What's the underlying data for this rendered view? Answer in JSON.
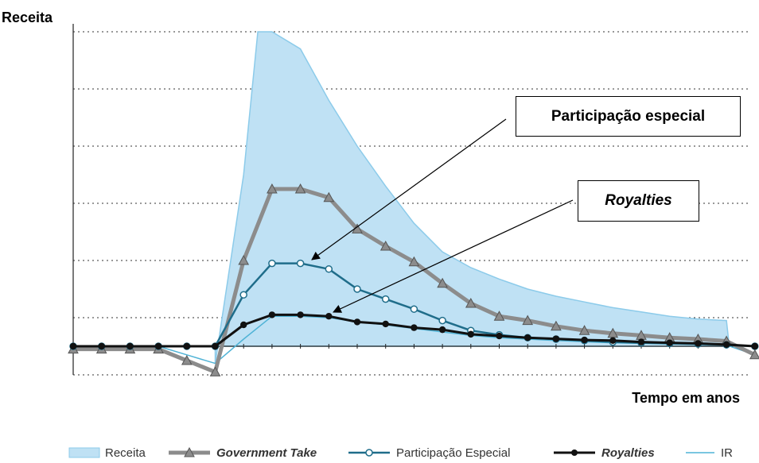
{
  "chart_data": {
    "type": "line",
    "ylabel": "Receita",
    "xlabel": "Tempo em anos",
    "grid": true,
    "x": [
      0,
      1,
      2,
      3,
      4,
      5,
      6,
      7,
      8,
      9,
      10,
      11,
      12,
      13,
      14,
      15,
      16,
      17,
      18,
      19,
      20,
      21,
      22,
      23,
      24
    ],
    "ylim": [
      -1,
      11
    ],
    "series": [
      {
        "name": "Receita",
        "style": "area",
        "x": [
          5,
          6,
          6.5,
          7,
          8,
          9,
          10,
          11,
          12,
          13,
          14,
          15,
          16,
          17,
          18,
          19,
          20,
          21,
          22,
          23,
          23.1
        ],
        "values": [
          -0.6,
          6.0,
          11.0,
          11.0,
          10.4,
          8.6,
          7.0,
          5.6,
          4.3,
          3.3,
          2.75,
          2.35,
          2.0,
          1.75,
          1.55,
          1.35,
          1.2,
          1.05,
          0.95,
          0.9,
          0
        ]
      },
      {
        "name": "Government Take",
        "style": "triangle",
        "values": [
          -0.1,
          -0.1,
          -0.1,
          -0.1,
          -0.5,
          -0.9,
          3.0,
          5.5,
          5.5,
          5.2,
          4.1,
          3.5,
          2.95,
          2.2,
          1.5,
          1.05,
          0.9,
          0.7,
          0.55,
          0.45,
          0.38,
          0.3,
          0.25,
          0.18,
          -0.3
        ]
      },
      {
        "name": "Participação Especial",
        "style": "circle-open",
        "values": [
          0,
          0,
          0,
          0,
          0,
          0,
          1.8,
          2.9,
          2.9,
          2.7,
          2.0,
          1.65,
          1.3,
          0.9,
          0.55,
          0.4,
          0.3,
          0.25,
          0.2,
          0.15,
          0.12,
          0.1,
          0.08,
          0.05,
          0
        ]
      },
      {
        "name": "Royalties",
        "style": "dot-filled",
        "values": [
          0,
          0,
          0,
          0,
          0,
          0,
          0.75,
          1.1,
          1.1,
          1.05,
          0.85,
          0.78,
          0.65,
          0.58,
          0.42,
          0.36,
          0.3,
          0.26,
          0.22,
          0.2,
          0.15,
          0.12,
          0.1,
          0.06,
          0
        ]
      },
      {
        "name": "IR",
        "style": "thin",
        "values": [
          0,
          0,
          0,
          0,
          -0.3,
          -0.6,
          0.25,
          1.05,
          1.05,
          1.0,
          0.85,
          0.75,
          0.62,
          0.5,
          0.38,
          0.3,
          0.25,
          0.2,
          0.16,
          0.12,
          0.1,
          0.08,
          0.06,
          0.04,
          -0.3
        ]
      }
    ],
    "annotations": [
      "Participação especial",
      "Royalties"
    ]
  },
  "legend": {
    "receita": "Receita",
    "government_take": "Government Take",
    "participacao": "Participação Especial",
    "royalties": "Royalties",
    "ir": "IR"
  },
  "colors": {
    "area_fill": "#bfe1f4",
    "area_stroke": "#8ccbea",
    "gov": "#8c8c8c",
    "pe": "#1f6d8a",
    "roy": "#111111",
    "ir": "#4fb3d6",
    "grid": "#333333"
  }
}
